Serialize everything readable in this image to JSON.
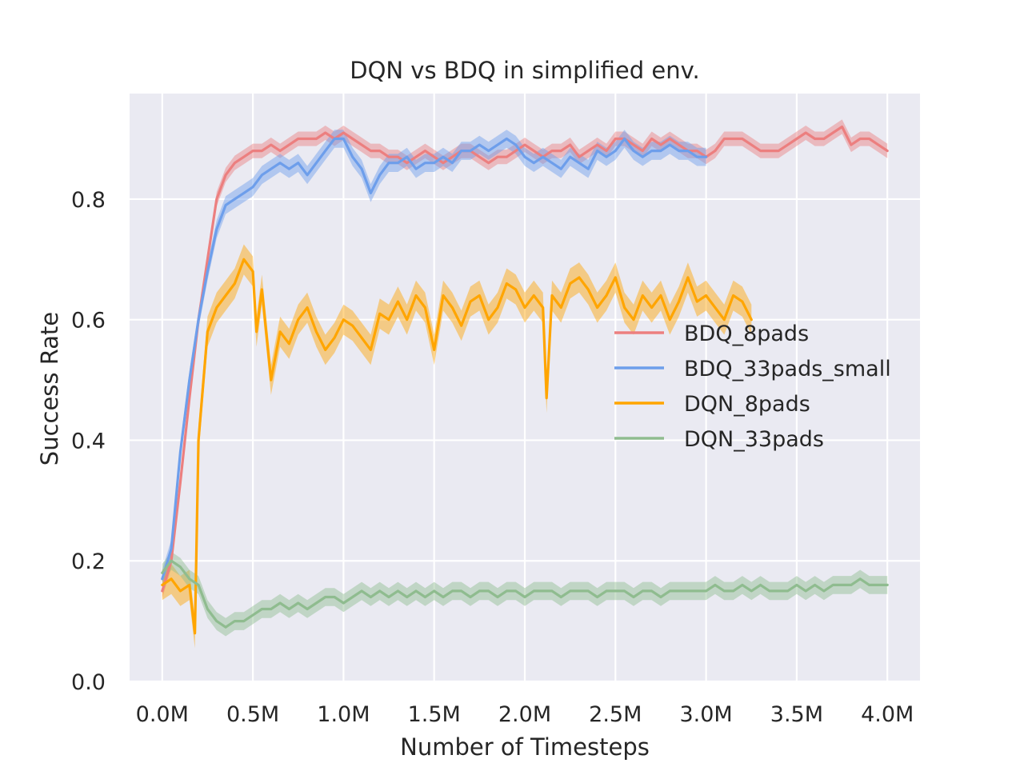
{
  "chart_data": {
    "type": "line",
    "title": "DQN vs BDQ in simplified env.",
    "xlabel": "Number of Timesteps",
    "ylabel": "Success Rate",
    "xlim": [
      -0.18,
      4.18
    ],
    "ylim": [
      0.0,
      0.975
    ],
    "x_unit": "M timesteps",
    "xticks": [
      0.0,
      0.5,
      1.0,
      1.5,
      2.0,
      2.5,
      3.0,
      3.5,
      4.0
    ],
    "xtick_labels": [
      "0.0M",
      "0.5M",
      "1.0M",
      "1.5M",
      "2.0M",
      "2.5M",
      "3.0M",
      "3.5M",
      "4.0M"
    ],
    "yticks": [
      0.0,
      0.2,
      0.4,
      0.6,
      0.8
    ],
    "ytick_labels": [
      "0.0",
      "0.2",
      "0.4",
      "0.6",
      "0.8"
    ],
    "grid": true,
    "background": "#eaeaf2",
    "legend_position": "center-right",
    "series": [
      {
        "name": "BDQ_8pads",
        "color": "#ec7f7f",
        "band": 0.012,
        "x": [
          0.0,
          0.05,
          0.1,
          0.15,
          0.2,
          0.25,
          0.3,
          0.35,
          0.4,
          0.45,
          0.5,
          0.55,
          0.6,
          0.65,
          0.7,
          0.75,
          0.8,
          0.85,
          0.9,
          0.95,
          1.0,
          1.05,
          1.1,
          1.15,
          1.2,
          1.25,
          1.3,
          1.35,
          1.4,
          1.45,
          1.5,
          1.55,
          1.6,
          1.65,
          1.7,
          1.75,
          1.8,
          1.85,
          1.9,
          1.95,
          2.0,
          2.05,
          2.1,
          2.15,
          2.2,
          2.25,
          2.3,
          2.35,
          2.4,
          2.45,
          2.5,
          2.55,
          2.6,
          2.65,
          2.7,
          2.75,
          2.8,
          2.85,
          2.9,
          2.95,
          3.0,
          3.05,
          3.1,
          3.15,
          3.2,
          3.25,
          3.3,
          3.35,
          3.4,
          3.45,
          3.5,
          3.55,
          3.6,
          3.65,
          3.7,
          3.75,
          3.8,
          3.85,
          3.9,
          3.95,
          4.0
        ],
        "y": [
          0.15,
          0.2,
          0.33,
          0.47,
          0.6,
          0.7,
          0.8,
          0.84,
          0.86,
          0.87,
          0.88,
          0.88,
          0.89,
          0.88,
          0.89,
          0.9,
          0.9,
          0.9,
          0.91,
          0.9,
          0.91,
          0.9,
          0.89,
          0.88,
          0.88,
          0.87,
          0.87,
          0.86,
          0.87,
          0.88,
          0.87,
          0.86,
          0.87,
          0.88,
          0.88,
          0.87,
          0.86,
          0.87,
          0.87,
          0.88,
          0.89,
          0.88,
          0.87,
          0.88,
          0.88,
          0.89,
          0.87,
          0.88,
          0.89,
          0.88,
          0.9,
          0.9,
          0.89,
          0.88,
          0.9,
          0.89,
          0.9,
          0.89,
          0.88,
          0.88,
          0.87,
          0.88,
          0.9,
          0.9,
          0.9,
          0.89,
          0.88,
          0.88,
          0.88,
          0.89,
          0.9,
          0.91,
          0.9,
          0.9,
          0.91,
          0.92,
          0.89,
          0.9,
          0.9,
          0.89,
          0.88
        ]
      },
      {
        "name": "BDQ_33pads_small",
        "color": "#6d9eeb",
        "band": 0.015,
        "x": [
          0.0,
          0.05,
          0.1,
          0.15,
          0.2,
          0.25,
          0.3,
          0.35,
          0.4,
          0.45,
          0.5,
          0.55,
          0.6,
          0.65,
          0.7,
          0.75,
          0.8,
          0.85,
          0.9,
          0.95,
          1.0,
          1.05,
          1.1,
          1.15,
          1.2,
          1.25,
          1.3,
          1.35,
          1.4,
          1.45,
          1.5,
          1.55,
          1.6,
          1.65,
          1.7,
          1.75,
          1.8,
          1.85,
          1.9,
          1.95,
          2.0,
          2.05,
          2.1,
          2.15,
          2.2,
          2.25,
          2.3,
          2.35,
          2.4,
          2.45,
          2.5,
          2.55,
          2.6,
          2.65,
          2.7,
          2.75,
          2.8,
          2.85,
          2.9,
          2.95,
          3.0
        ],
        "y": [
          0.17,
          0.22,
          0.38,
          0.5,
          0.6,
          0.68,
          0.75,
          0.79,
          0.8,
          0.81,
          0.82,
          0.84,
          0.85,
          0.86,
          0.85,
          0.86,
          0.84,
          0.86,
          0.88,
          0.9,
          0.9,
          0.87,
          0.85,
          0.81,
          0.84,
          0.86,
          0.86,
          0.87,
          0.85,
          0.86,
          0.86,
          0.87,
          0.86,
          0.88,
          0.88,
          0.89,
          0.88,
          0.89,
          0.9,
          0.89,
          0.87,
          0.86,
          0.87,
          0.86,
          0.85,
          0.87,
          0.86,
          0.85,
          0.88,
          0.87,
          0.88,
          0.9,
          0.88,
          0.87,
          0.88,
          0.88,
          0.89,
          0.88,
          0.88,
          0.87,
          0.87
        ]
      },
      {
        "name": "DQN_8pads",
        "color": "#ffa500",
        "band": 0.025,
        "x": [
          0.0,
          0.05,
          0.1,
          0.15,
          0.18,
          0.2,
          0.25,
          0.3,
          0.35,
          0.4,
          0.45,
          0.5,
          0.52,
          0.55,
          0.6,
          0.65,
          0.7,
          0.75,
          0.8,
          0.85,
          0.9,
          0.95,
          1.0,
          1.05,
          1.1,
          1.15,
          1.2,
          1.25,
          1.3,
          1.35,
          1.4,
          1.45,
          1.5,
          1.55,
          1.6,
          1.65,
          1.7,
          1.75,
          1.8,
          1.85,
          1.9,
          1.95,
          2.0,
          2.05,
          2.1,
          2.12,
          2.15,
          2.2,
          2.25,
          2.3,
          2.35,
          2.4,
          2.45,
          2.5,
          2.55,
          2.6,
          2.65,
          2.7,
          2.75,
          2.8,
          2.85,
          2.9,
          2.95,
          3.0,
          3.05,
          3.1,
          3.15,
          3.2,
          3.25
        ],
        "y": [
          0.16,
          0.17,
          0.15,
          0.16,
          0.08,
          0.4,
          0.58,
          0.62,
          0.64,
          0.66,
          0.7,
          0.68,
          0.58,
          0.65,
          0.5,
          0.58,
          0.56,
          0.6,
          0.62,
          0.58,
          0.55,
          0.57,
          0.6,
          0.59,
          0.57,
          0.55,
          0.61,
          0.6,
          0.63,
          0.6,
          0.64,
          0.62,
          0.55,
          0.64,
          0.62,
          0.59,
          0.63,
          0.64,
          0.6,
          0.62,
          0.66,
          0.65,
          0.62,
          0.64,
          0.62,
          0.47,
          0.64,
          0.62,
          0.66,
          0.67,
          0.65,
          0.62,
          0.64,
          0.67,
          0.62,
          0.6,
          0.64,
          0.62,
          0.64,
          0.6,
          0.63,
          0.67,
          0.63,
          0.64,
          0.62,
          0.6,
          0.64,
          0.63,
          0.6
        ]
      },
      {
        "name": "DQN_33pads",
        "color": "#8fbc8f",
        "band": 0.015,
        "x": [
          0.0,
          0.05,
          0.1,
          0.15,
          0.2,
          0.25,
          0.3,
          0.35,
          0.4,
          0.45,
          0.5,
          0.55,
          0.6,
          0.65,
          0.7,
          0.75,
          0.8,
          0.85,
          0.9,
          0.95,
          1.0,
          1.05,
          1.1,
          1.15,
          1.2,
          1.25,
          1.3,
          1.35,
          1.4,
          1.45,
          1.5,
          1.55,
          1.6,
          1.65,
          1.7,
          1.75,
          1.8,
          1.85,
          1.9,
          1.95,
          2.0,
          2.05,
          2.1,
          2.15,
          2.2,
          2.25,
          2.3,
          2.35,
          2.4,
          2.45,
          2.5,
          2.55,
          2.6,
          2.65,
          2.7,
          2.75,
          2.8,
          2.85,
          2.9,
          2.95,
          3.0,
          3.05,
          3.1,
          3.15,
          3.2,
          3.25,
          3.3,
          3.35,
          3.4,
          3.45,
          3.5,
          3.55,
          3.6,
          3.65,
          3.7,
          3.75,
          3.8,
          3.85,
          3.9,
          3.95,
          4.0
        ],
        "y": [
          0.18,
          0.2,
          0.19,
          0.17,
          0.16,
          0.12,
          0.1,
          0.09,
          0.1,
          0.1,
          0.11,
          0.12,
          0.12,
          0.13,
          0.12,
          0.13,
          0.12,
          0.13,
          0.14,
          0.14,
          0.13,
          0.14,
          0.15,
          0.14,
          0.15,
          0.14,
          0.15,
          0.14,
          0.15,
          0.14,
          0.15,
          0.14,
          0.15,
          0.15,
          0.14,
          0.15,
          0.15,
          0.14,
          0.15,
          0.15,
          0.14,
          0.15,
          0.15,
          0.15,
          0.14,
          0.15,
          0.15,
          0.15,
          0.14,
          0.15,
          0.15,
          0.15,
          0.14,
          0.15,
          0.15,
          0.14,
          0.15,
          0.15,
          0.15,
          0.15,
          0.15,
          0.16,
          0.15,
          0.15,
          0.16,
          0.15,
          0.16,
          0.15,
          0.15,
          0.15,
          0.16,
          0.15,
          0.16,
          0.15,
          0.16,
          0.16,
          0.16,
          0.17,
          0.16,
          0.16,
          0.16
        ]
      }
    ]
  }
}
